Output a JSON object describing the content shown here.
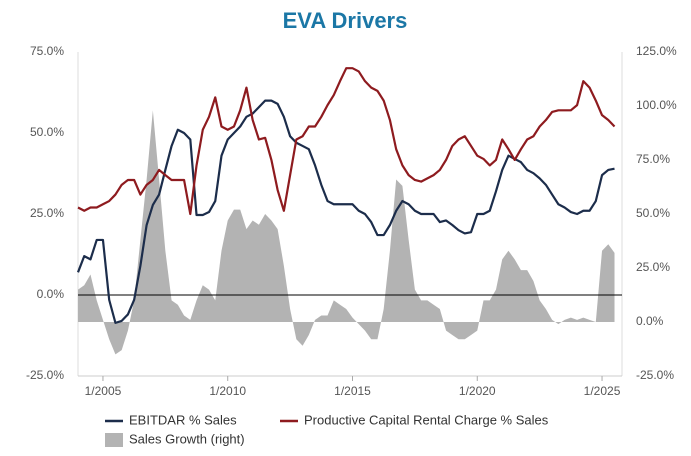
{
  "chart_data": {
    "type": "line",
    "title": "EVA Drivers",
    "x": [
      2004,
      2004.25,
      2004.5,
      2004.75,
      2005,
      2005.25,
      2005.5,
      2005.75,
      2006,
      2006.25,
      2006.5,
      2006.75,
      2007,
      2007.25,
      2007.5,
      2007.75,
      2008,
      2008.25,
      2008.5,
      2008.75,
      2009,
      2009.25,
      2009.5,
      2009.75,
      2010,
      2010.25,
      2010.5,
      2010.75,
      2011,
      2011.25,
      2011.5,
      2011.75,
      2012,
      2012.25,
      2012.5,
      2012.75,
      2013,
      2013.25,
      2013.5,
      2013.75,
      2014,
      2014.25,
      2014.5,
      2014.75,
      2015,
      2015.25,
      2015.5,
      2015.75,
      2016,
      2016.25,
      2016.5,
      2016.75,
      2017,
      2017.25,
      2017.5,
      2017.75,
      2018,
      2018.25,
      2018.5,
      2018.75,
      2019,
      2019.25,
      2019.5,
      2019.75,
      2020,
      2020.25,
      2020.5,
      2020.75,
      2021,
      2021.25,
      2021.5,
      2021.75,
      2022,
      2022.25,
      2022.5,
      2022.75,
      2023,
      2023.25,
      2023.5,
      2023.75,
      2024,
      2024.25,
      2024.5,
      2024.75,
      2025,
      2025.25,
      2025.5
    ],
    "series": [
      {
        "name": "EBITDAR % Sales",
        "color": "#1c2d4b",
        "type": "line",
        "axis": "y",
        "values": [
          7,
          12,
          11,
          17,
          17,
          -1.5,
          -8.6,
          -8,
          -6,
          -1.5,
          9,
          21.6,
          27.8,
          31,
          38.6,
          46,
          51,
          50,
          48,
          24.7,
          24.7,
          25.6,
          29,
          43,
          48,
          50,
          52,
          55,
          56,
          58,
          60,
          60,
          59,
          55,
          49,
          47,
          46,
          45,
          40,
          34,
          29,
          28,
          28,
          28,
          28,
          26,
          25,
          22.5,
          18.5,
          18.5,
          21.6,
          26,
          29,
          28,
          26,
          25,
          25,
          25,
          22.5,
          23,
          21.6,
          20,
          19,
          19.4,
          25,
          25,
          26,
          32,
          38.6,
          43,
          42,
          41,
          38.6,
          37.6,
          36,
          34,
          31,
          28,
          27,
          25.6,
          25,
          26,
          26,
          29,
          37,
          38.6,
          39
        ]
      },
      {
        "name": "Productive Capital Rental Charge % Sales",
        "color": "#8e1b1f",
        "type": "line",
        "axis": "y",
        "values": [
          27,
          26,
          27,
          27,
          28,
          29,
          31,
          34,
          35.5,
          35.5,
          31,
          34,
          35.5,
          38.6,
          37,
          35.5,
          35.5,
          35.5,
          25,
          40,
          51,
          55,
          61,
          52,
          51,
          52,
          57,
          64,
          54,
          48,
          48.5,
          41.7,
          32.4,
          26,
          37,
          48,
          49,
          52,
          52,
          55,
          58.6,
          61.7,
          66,
          70,
          70,
          69,
          66,
          64,
          63,
          60,
          54,
          45,
          40,
          37,
          35.5,
          35,
          36,
          37,
          38.6,
          41.7,
          46,
          48,
          49,
          46,
          43,
          42,
          40,
          41.7,
          48,
          45,
          41.7,
          45,
          48,
          49,
          52,
          54,
          56.5,
          57,
          57,
          57,
          58.6,
          66,
          64,
          60,
          55.5,
          54,
          52
        ]
      },
      {
        "name": "Sales Growth (right)",
        "color": "#b3b3b3",
        "type": "area",
        "axis": "y2",
        "values": [
          15,
          17,
          22,
          10,
          1,
          -8,
          -15,
          -13,
          -4,
          10,
          38,
          66,
          98,
          66,
          33,
          10,
          8,
          3,
          1,
          10,
          17,
          15,
          10,
          33,
          47,
          52,
          52,
          43,
          47,
          45,
          50,
          47,
          43,
          26,
          6,
          -8,
          -11,
          -6,
          1,
          3,
          3,
          10,
          8,
          6,
          2,
          -1,
          -4,
          -8,
          -8,
          6,
          33,
          66,
          63,
          38,
          15,
          10,
          10,
          8,
          6,
          -4,
          -6,
          -8,
          -8,
          -6,
          -4,
          10,
          10,
          15,
          29,
          33,
          29,
          24,
          24,
          19,
          10,
          6,
          1,
          -1,
          1,
          2,
          1,
          2,
          1,
          0,
          33,
          36,
          32
        ]
      }
    ],
    "xlim": [
      2004,
      2025.8
    ],
    "xticks": [
      {
        "value": 2005,
        "label": "1/2005"
      },
      {
        "value": 2010,
        "label": "1/2010"
      },
      {
        "value": 2015,
        "label": "1/2015"
      },
      {
        "value": 2020,
        "label": "1/2020"
      },
      {
        "value": 2025,
        "label": "1/2025"
      }
    ],
    "ylim": [
      -25,
      75
    ],
    "yticks": [
      {
        "value": -25,
        "label": "-25.0%"
      },
      {
        "value": 0,
        "label": "0.0%"
      },
      {
        "value": 25,
        "label": "25.0%"
      },
      {
        "value": 50,
        "label": "50.0%"
      },
      {
        "value": 75,
        "label": "75.0%"
      }
    ],
    "y2lim": [
      -25,
      125
    ],
    "y2ticks": [
      {
        "value": -25,
        "label": "-25.0%"
      },
      {
        "value": 0,
        "label": "0.0%"
      },
      {
        "value": 25,
        "label": "25.0%"
      },
      {
        "value": 50,
        "label": "50.0%"
      },
      {
        "value": 75,
        "label": "75.0%"
      },
      {
        "value": 100,
        "label": "100.0%"
      },
      {
        "value": 125,
        "label": "125.0%"
      }
    ],
    "zero_line": true,
    "legend": "bottom"
  }
}
